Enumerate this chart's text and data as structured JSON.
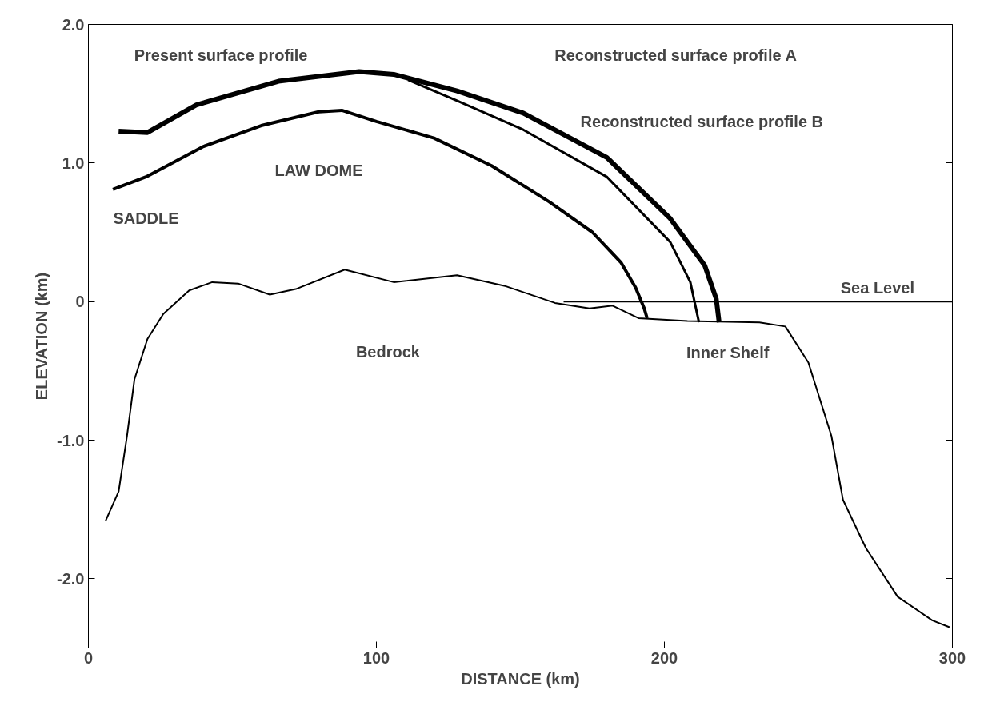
{
  "chart_data": {
    "type": "line",
    "xlabel": "DISTANCE (km)",
    "ylabel": "ELEVATION (km)",
    "xlim": [
      0,
      300
    ],
    "xticks": [
      0,
      100,
      200,
      300
    ],
    "ylim": [
      -2.5,
      2.0
    ],
    "yticks": [
      {
        "value": 2.0,
        "label": "2.0"
      },
      {
        "value": 1.0,
        "label": "1.0"
      },
      0,
      {
        "value": -1.0,
        "label": "-1.0"
      },
      {
        "value": -2.0,
        "label": "-2.0"
      }
    ],
    "grid": false,
    "marker": "none",
    "line_style": "solid",
    "series": [
      {
        "color": "#000000",
        "x": [
          8.5,
          20,
          40,
          60,
          80,
          88,
          100,
          120,
          140,
          160,
          175,
          185,
          190,
          193,
          194
        ],
        "values": [
          0.81,
          0.9,
          1.12,
          1.27,
          1.37,
          1.38,
          1.3,
          1.18,
          0.98,
          0.72,
          0.5,
          0.28,
          0.1,
          -0.05,
          -0.12
        ]
      },
      {
        "color": "#000000",
        "x": [
          10.5,
          20.5,
          37.5,
          66,
          94,
          106,
          128,
          151,
          180,
          202,
          214,
          218,
          219
        ],
        "values": [
          1.23,
          1.22,
          1.42,
          1.59,
          1.66,
          1.64,
          1.52,
          1.36,
          1.04,
          0.6,
          0.26,
          0.02,
          -0.15
        ]
      },
      {
        "color": "#000000",
        "x": [
          111,
          128,
          151,
          180,
          202,
          209,
          212
        ],
        "values": [
          1.6,
          1.45,
          1.24,
          0.9,
          0.43,
          0.14,
          -0.15
        ]
      },
      {
        "color": "#000000",
        "x": [
          6,
          10.5,
          13.4,
          16,
          20.5,
          26,
          35,
          43,
          52,
          63,
          72,
          89,
          106,
          128,
          145,
          162,
          174,
          182,
          191,
          208,
          233,
          242,
          250,
          258,
          262,
          270,
          281,
          293,
          299
        ],
        "values": [
          -1.58,
          -1.37,
          -0.97,
          -0.56,
          -0.27,
          -0.09,
          0.08,
          0.14,
          0.13,
          0.05,
          0.09,
          0.23,
          0.14,
          0.19,
          0.11,
          -0.01,
          -0.05,
          -0.03,
          -0.12,
          -0.14,
          -0.15,
          -0.18,
          -0.44,
          -0.97,
          -1.43,
          -1.78,
          -2.13,
          -2.3,
          -2.35
        ]
      },
      {
        "color": "#000000",
        "x": [
          165,
          300
        ],
        "values": [
          0,
          0
        ]
      }
    ],
    "annotations": [
      "Present surface profile",
      "Reconstructed surface profile A",
      "Reconstructed surface profile B",
      "LAW DOME",
      "SADDLE",
      "Sea Level",
      "Bedrock",
      "Inner Shelf"
    ]
  }
}
